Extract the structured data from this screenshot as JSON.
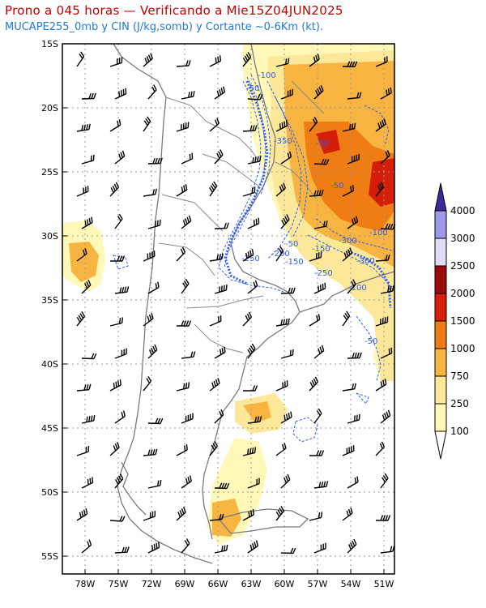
{
  "header": {
    "title": "Prono a 045 horas — Verificando a Mie15Z04JUN2025",
    "subtitle": "MUCAPE255_0mb y CIN (J/kg,somb) y Cortante ~0-6Km (kt)."
  },
  "axes": {
    "lat_labels": [
      "15S",
      "20S",
      "25S",
      "30S",
      "35S",
      "40S",
      "45S",
      "50S",
      "55S"
    ],
    "lon_labels": [
      "78W",
      "75W",
      "72W",
      "69W",
      "66W",
      "63W",
      "60W",
      "57W",
      "54W",
      "51W"
    ],
    "lat_range": [
      -56,
      -15
    ],
    "lon_range": [
      -80,
      -50.5
    ]
  },
  "colorbar": {
    "levels": [
      "100",
      "250",
      "750",
      "1000",
      "1500",
      "2000",
      "2500",
      "3000",
      "4000"
    ],
    "colors": [
      "#fff8b8",
      "#fde89a",
      "#f8b440",
      "#f07c14",
      "#d41e0a",
      "#9a0a0a",
      "#dcdcf6",
      "#a098ea",
      "#6a5ed6",
      "#3a2a9a"
    ]
  },
  "cin_labels": [
    "-100",
    "-50",
    "-350",
    "-50",
    "-50",
    "-300",
    "-250",
    "-200",
    "-150",
    "-150",
    "-250",
    "-300",
    "-100",
    "-100",
    "-50",
    "-50"
  ],
  "legend_colors": {
    "title": "#c00000",
    "subtitle": "#1f7bd6",
    "cin_contour": "#2f5cf0"
  }
}
